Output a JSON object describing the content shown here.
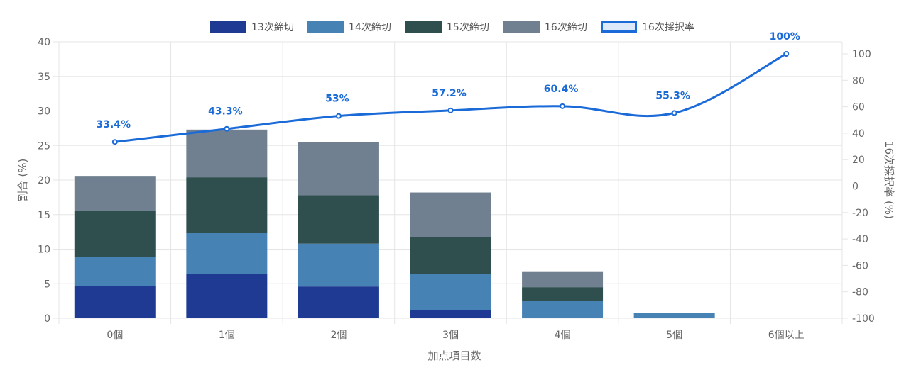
{
  "chart_data": {
    "type": "bar",
    "stacked": true,
    "categories": [
      "0個",
      "1個",
      "2個",
      "3個",
      "4個",
      "5個",
      "6個以上"
    ],
    "series": [
      {
        "name": "13次締切",
        "color": "#1f3a93",
        "values": [
          4.7,
          6.4,
          4.6,
          1.2,
          0,
          0,
          0
        ]
      },
      {
        "name": "14次締切",
        "color": "#4682b4",
        "values": [
          4.2,
          6.0,
          6.2,
          5.2,
          2.5,
          0.8,
          0
        ]
      },
      {
        "name": "15次締切",
        "color": "#2f4f4f",
        "values": [
          6.6,
          8.0,
          7.0,
          5.3,
          2.0,
          0,
          0
        ]
      },
      {
        "name": "16次締切",
        "color": "#708090",
        "values": [
          5.1,
          6.9,
          7.7,
          6.5,
          2.3,
          0,
          0
        ]
      }
    ],
    "line": {
      "name": "16次採択率",
      "color": "#1a6ad8",
      "values": [
        33.4,
        43.3,
        53,
        57.2,
        60.4,
        55.3,
        100
      ],
      "labels": [
        "33.4%",
        "43.3%",
        "53%",
        "57.2%",
        "60.4%",
        "55.3%",
        "100%"
      ]
    },
    "xlabel": "加点項目数",
    "ylabel": "割合 (%)",
    "y2label": "16次採択率 (%)",
    "ylim": [
      0,
      40
    ],
    "y2lim": [
      -100,
      110
    ],
    "yticks": [
      "0",
      "5",
      "10",
      "15",
      "20",
      "25",
      "30",
      "35",
      "40"
    ],
    "y2ticks": [
      "-100",
      "-80",
      "-60",
      "-40",
      "-20",
      "0",
      "20",
      "40",
      "60",
      "80",
      "100"
    ],
    "legend": "top-center",
    "grid": true
  }
}
